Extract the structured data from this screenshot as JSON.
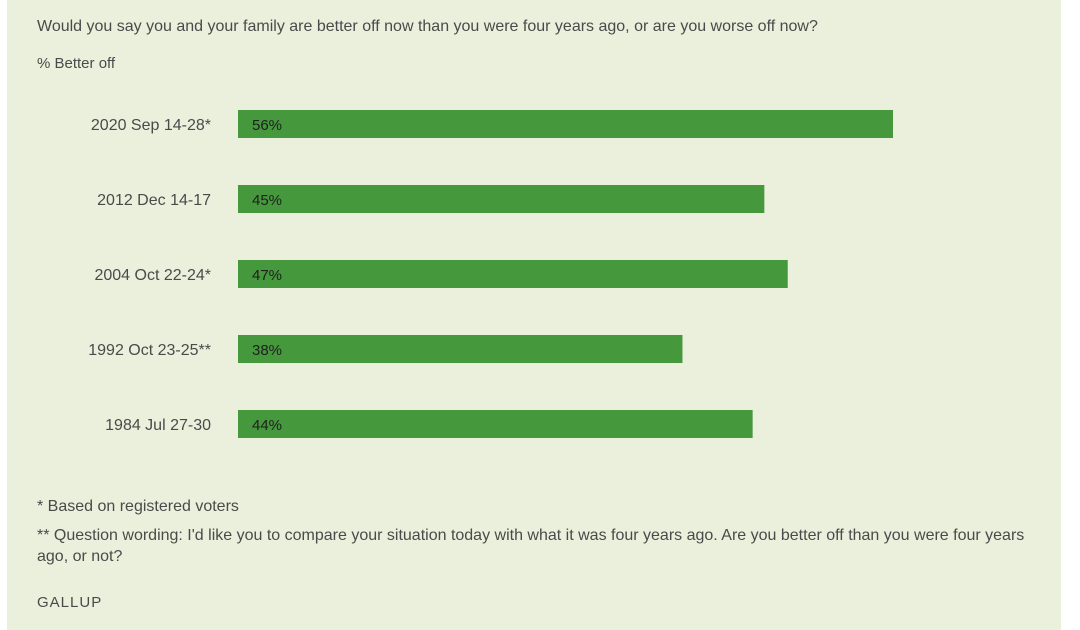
{
  "header": {
    "question": "Would you say you and your family are better off now than you were four years ago, or are you worse off now?",
    "measure_label": "% Better off"
  },
  "chart_data": {
    "type": "bar",
    "orientation": "horizontal",
    "categories": [
      "2020 Sep 14-28*",
      "2012 Dec 14-17",
      "2004 Oct 22-24*",
      "1992 Oct 23-25**",
      "1984 Jul 27-30"
    ],
    "values": [
      56,
      45,
      47,
      38,
      44
    ],
    "value_labels": [
      "56%",
      "45%",
      "47%",
      "38%",
      "44%"
    ],
    "xlim": [
      0,
      70
    ],
    "grid": false,
    "bar_color": "#46983d"
  },
  "notes": {
    "note1": "* Based on registered voters",
    "note2": "** Question wording: I'd like you to compare your situation today with what it was four years ago. Are you better off than you were four years ago, or not?"
  },
  "footer": {
    "brand": "GALLUP"
  },
  "colors": {
    "background": "#eaf0dc",
    "bar": "#46983d",
    "text": "#4a4a4a"
  }
}
